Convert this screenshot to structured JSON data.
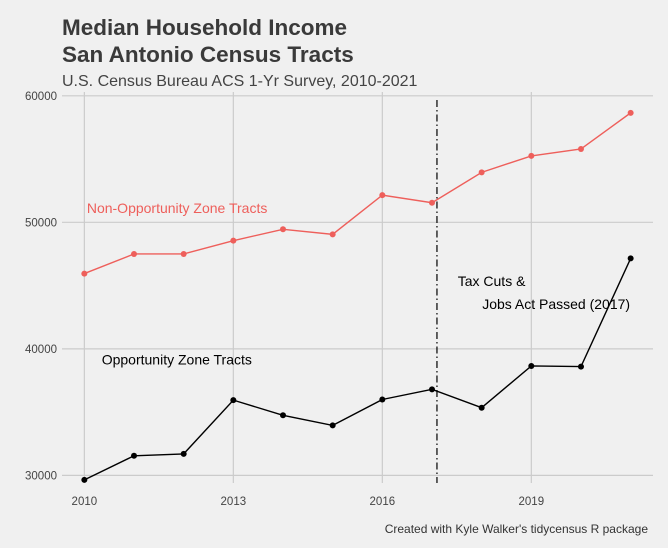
{
  "title_line1": "Median Household Income",
  "title_line2": "San Antonio Census Tracts",
  "subtitle": "U.S. Census Bureau ACS 1-Yr Survey, 2010-2021",
  "caption": "Created with Kyle Walker's tidycensus R package",
  "chart_data": {
    "type": "line",
    "x": [
      2010,
      2011,
      2012,
      2013,
      2014,
      2015,
      2016,
      2017,
      2018,
      2019,
      2020,
      2021
    ],
    "series": [
      {
        "name": "Non-Opportunity Zone Tracts",
        "color": "#ee5f5b",
        "values": [
          45950,
          47500,
          47500,
          48550,
          49450,
          49050,
          52150,
          51550,
          53950,
          55250,
          55800,
          58650
        ]
      },
      {
        "name": "Opportunity Zone Tracts",
        "color": "#000000",
        "values": [
          29650,
          31550,
          31700,
          35950,
          34750,
          33950,
          36000,
          36800,
          35350,
          38650,
          38600,
          47150
        ]
      }
    ],
    "xticks": [
      2010,
      2013,
      2016,
      2019
    ],
    "xtick_labels": [
      "2010",
      "2013",
      "2016",
      "2019"
    ],
    "yticks": [
      30000,
      40000,
      50000,
      60000
    ],
    "ytick_labels": [
      "30000",
      "40000",
      "50000",
      "60000"
    ],
    "xlim": [
      2009.55,
      2021.45
    ],
    "ylim": [
      29400,
      60300
    ],
    "grid": true,
    "vline": {
      "x": 2017.1,
      "style": "dot-dash"
    },
    "annotations": [
      {
        "text": "Tax Cuts &",
        "x": 2018.2,
        "y": 44950
      },
      {
        "text": "Jobs Act Passed (2017)",
        "x": 2019.5,
        "y": 43150
      }
    ]
  }
}
